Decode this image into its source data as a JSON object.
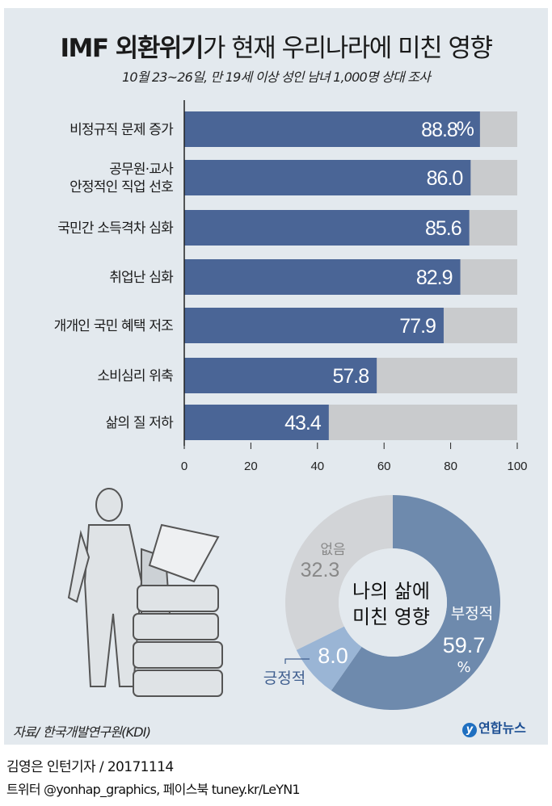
{
  "title": {
    "bold": "IMF 외환위기",
    "rest": "가 현재 우리나라에 미친 영향"
  },
  "subtitle": "10월 23~26일, 만 19세 이상 성인 남녀 1,000명 상대 조사",
  "chart_data": [
    {
      "type": "bar",
      "orientation": "horizontal",
      "categories": [
        "비정규직 문제 증가",
        "공무원·교사 안정적인 직업 선호",
        "국민간 소득격차 심화",
        "취업난 심화",
        "개개인 국민 혜택 저조",
        "소비심리 위축",
        "삶의 질 저하"
      ],
      "category_lines": [
        [
          "비정규직 문제 증가"
        ],
        [
          "공무원·교사",
          "안정적인 직업 선호"
        ],
        [
          "국민간 소득격차 심화"
        ],
        [
          "취업난 심화"
        ],
        [
          "개개인 국민 혜택 저조"
        ],
        [
          "소비심리 위축"
        ],
        [
          "삶의 질 저하"
        ]
      ],
      "values": [
        88.8,
        86.0,
        85.6,
        82.9,
        77.9,
        57.8,
        43.4
      ],
      "value_labels": [
        "88.8",
        "86.0",
        "85.6",
        "82.9",
        "77.9",
        "57.8",
        "43.4"
      ],
      "unit": "%",
      "xlim": [
        0,
        100
      ],
      "xticks": [
        0,
        20,
        40,
        60,
        80,
        100
      ],
      "grid": false,
      "colors": {
        "bar": "#4a6596",
        "track": "#c9cbcd"
      }
    },
    {
      "type": "pie",
      "donut": true,
      "center_label": [
        "나의 삶에",
        "미친 영향"
      ],
      "slices": [
        {
          "label": "부정적",
          "value": 59.7,
          "value_label": "59.7",
          "color": "#6e8aad"
        },
        {
          "label": "긍정적",
          "value": 8.0,
          "value_label": "8.0",
          "color": "#9ab5d5"
        },
        {
          "label": "없음",
          "value": 32.3,
          "value_label": "32.3",
          "color": "#d2d4d7"
        }
      ],
      "unit": "%"
    }
  ],
  "source": "자료/ 한국개발연구원(KDI)",
  "logo": "연합뉴스",
  "credit": "김영은 인턴기자 / 20171114",
  "social": "트위터 @yonhap_graphics, 페이스북 tuney.kr/LeYN1"
}
